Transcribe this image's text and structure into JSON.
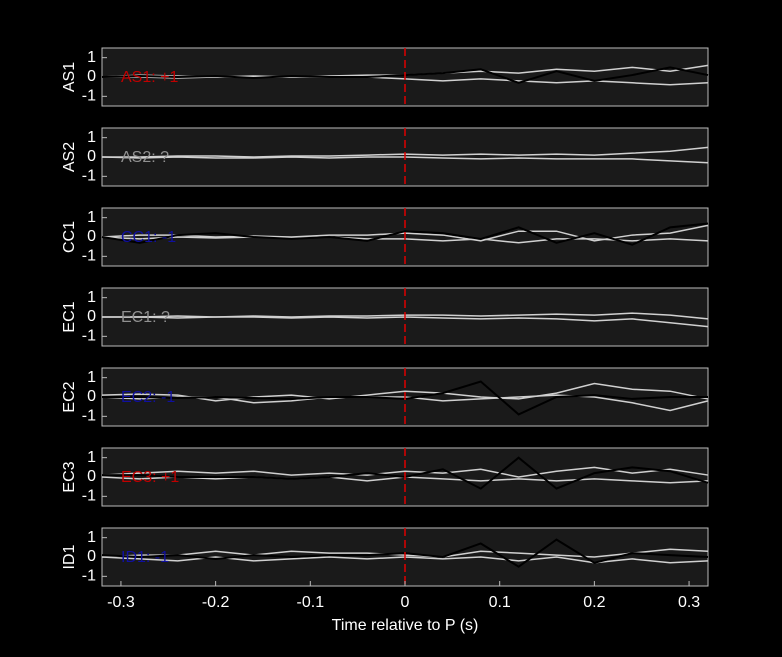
{
  "chart_data": [
    {
      "type": "line",
      "ylabel": "AS1",
      "annotation": "AS1: +1",
      "annotation_color": "#c00000",
      "vline": 0,
      "vline_color": "#e00000",
      "xlim": [
        -0.32,
        0.32
      ],
      "ylim": [
        -1.5,
        1.5
      ],
      "yticks": [
        1,
        0,
        -1
      ],
      "x": [
        -0.32,
        -0.28,
        -0.24,
        -0.2,
        -0.16,
        -0.12,
        -0.08,
        -0.04,
        0,
        0.04,
        0.08,
        0.12,
        0.16,
        0.2,
        0.24,
        0.28,
        0.32
      ],
      "series": [
        {
          "color": "#d0d0d0",
          "values": [
            0,
            0.1,
            0.05,
            0,
            0,
            0,
            0.05,
            0.1,
            0.1,
            0.2,
            0.3,
            0.2,
            0.4,
            0.3,
            0.5,
            0.3,
            0.6
          ]
        },
        {
          "color": "#d0d0d0",
          "values": [
            0,
            0,
            -0.05,
            0,
            0.05,
            0,
            0,
            0,
            -0.1,
            -0.2,
            -0.1,
            -0.2,
            -0.3,
            -0.2,
            -0.3,
            -0.4,
            -0.3
          ]
        },
        {
          "color": "#000000",
          "values": [
            0,
            0.05,
            0,
            0.05,
            -0.05,
            0.05,
            0,
            0,
            0.1,
            0.2,
            0.4,
            -0.3,
            0.3,
            -0.2,
            0.1,
            0.5,
            0.1
          ]
        }
      ]
    },
    {
      "type": "line",
      "ylabel": "AS2",
      "annotation": "AS2: ?",
      "annotation_color": "#909090",
      "vline": 0,
      "vline_color": "#e00000",
      "xlim": [
        -0.32,
        0.32
      ],
      "ylim": [
        -1.5,
        1.5
      ],
      "yticks": [
        1,
        0,
        -1
      ],
      "x": [
        -0.32,
        -0.28,
        -0.24,
        -0.2,
        -0.16,
        -0.12,
        -0.08,
        -0.04,
        0,
        0.04,
        0.08,
        0.12,
        0.16,
        0.2,
        0.24,
        0.28,
        0.32
      ],
      "series": [
        {
          "color": "#d0d0d0",
          "values": [
            0,
            0,
            0.05,
            0.05,
            0,
            0.05,
            0.05,
            0.1,
            0.15,
            0.1,
            0.15,
            0.1,
            0.15,
            0.1,
            0.2,
            0.3,
            0.5
          ]
        },
        {
          "color": "#d0d0d0",
          "values": [
            0,
            -0.05,
            0,
            -0.05,
            -0.05,
            0,
            -0.05,
            0,
            0,
            -0.05,
            -0.1,
            -0.05,
            -0.1,
            -0.1,
            -0.1,
            -0.2,
            -0.3
          ]
        }
      ]
    },
    {
      "type": "line",
      "ylabel": "CC1",
      "annotation": "CC1: -1",
      "annotation_color": "#1010a0",
      "vline": 0,
      "vline_color": "#e00000",
      "xlim": [
        -0.32,
        0.32
      ],
      "ylim": [
        -1.5,
        1.5
      ],
      "yticks": [
        1,
        0,
        -1
      ],
      "x": [
        -0.32,
        -0.28,
        -0.24,
        -0.2,
        -0.16,
        -0.12,
        -0.08,
        -0.04,
        0,
        0.04,
        0.08,
        0.12,
        0.16,
        0.2,
        0.24,
        0.28,
        0.32
      ],
      "series": [
        {
          "color": "#d0d0d0",
          "values": [
            0,
            0.1,
            0.1,
            0,
            0.05,
            0,
            0.1,
            0.1,
            0.2,
            0.1,
            -0.2,
            0.3,
            0.3,
            -0.2,
            0.1,
            0.2,
            0.6
          ]
        },
        {
          "color": "#d0d0d0",
          "values": [
            0,
            -0.1,
            0,
            -0.05,
            0,
            -0.05,
            0,
            -0.1,
            -0.1,
            -0.2,
            -0.1,
            -0.3,
            -0.1,
            -0.1,
            -0.2,
            -0.1,
            -0.2
          ]
        },
        {
          "color": "#000000",
          "values": [
            0,
            -0.3,
            0.1,
            0.2,
            0,
            -0.1,
            0,
            -0.2,
            0.3,
            0.2,
            -0.1,
            0.5,
            -0.3,
            0.2,
            -0.4,
            0.5,
            0.7
          ]
        }
      ]
    },
    {
      "type": "line",
      "ylabel": "EC1",
      "annotation": "EC1: ?",
      "annotation_color": "#909090",
      "vline": 0,
      "vline_color": "#e00000",
      "xlim": [
        -0.32,
        0.32
      ],
      "ylim": [
        -1.5,
        1.5
      ],
      "yticks": [
        1,
        0,
        -1
      ],
      "x": [
        -0.32,
        -0.28,
        -0.24,
        -0.2,
        -0.16,
        -0.12,
        -0.08,
        -0.04,
        0,
        0.04,
        0.08,
        0.12,
        0.16,
        0.2,
        0.24,
        0.28,
        0.32
      ],
      "series": [
        {
          "color": "#d0d0d0",
          "values": [
            0,
            0,
            0.05,
            0,
            0.05,
            0,
            0.05,
            0.05,
            0.1,
            0.1,
            0.05,
            0.1,
            0.15,
            0.1,
            0.2,
            0.1,
            -0.1
          ]
        },
        {
          "color": "#d0d0d0",
          "values": [
            0,
            0,
            -0.05,
            0,
            0,
            -0.05,
            0,
            -0.05,
            0,
            -0.05,
            -0.1,
            -0.05,
            -0.1,
            -0.2,
            -0.1,
            -0.3,
            -0.5
          ]
        }
      ]
    },
    {
      "type": "line",
      "ylabel": "EC2",
      "annotation": "EC2: -1",
      "annotation_color": "#1010a0",
      "vline": 0,
      "vline_color": "#e00000",
      "xlim": [
        -0.32,
        0.32
      ],
      "ylim": [
        -1.5,
        1.5
      ],
      "yticks": [
        1,
        0,
        -1
      ],
      "x": [
        -0.32,
        -0.28,
        -0.24,
        -0.2,
        -0.16,
        -0.12,
        -0.08,
        -0.04,
        0,
        0.04,
        0.08,
        0.12,
        0.16,
        0.2,
        0.24,
        0.28,
        0.32
      ],
      "series": [
        {
          "color": "#d0d0d0",
          "values": [
            0.1,
            0.15,
            0.1,
            -0.2,
            0,
            0.1,
            -0.1,
            0.1,
            0.3,
            0.2,
            0,
            -0.1,
            0.2,
            0.7,
            0.4,
            0.3,
            -0.1
          ]
        },
        {
          "color": "#d0d0d0",
          "values": [
            0,
            -0.1,
            0,
            0,
            -0.3,
            -0.2,
            0,
            0,
            0,
            -0.2,
            -0.1,
            0,
            0.1,
            0,
            -0.3,
            -0.7,
            -0.2
          ]
        },
        {
          "color": "#000000",
          "values": [
            0,
            0,
            -0.05,
            0,
            -0.05,
            -0.1,
            0,
            0,
            -0.1,
            0.2,
            0.8,
            -0.9,
            0,
            0.1,
            -0.1,
            0,
            0
          ]
        }
      ]
    },
    {
      "type": "line",
      "ylabel": "EC3",
      "annotation": "EC3: +1",
      "annotation_color": "#c00000",
      "vline": 0,
      "vline_color": "#e00000",
      "xlim": [
        -0.32,
        0.32
      ],
      "ylim": [
        -1.5,
        1.5
      ],
      "yticks": [
        1,
        0,
        -1
      ],
      "x": [
        -0.32,
        -0.28,
        -0.24,
        -0.2,
        -0.16,
        -0.12,
        -0.08,
        -0.04,
        0,
        0.04,
        0.08,
        0.12,
        0.16,
        0.2,
        0.24,
        0.28,
        0.32
      ],
      "series": [
        {
          "color": "#d0d0d0",
          "values": [
            0.1,
            0.2,
            0.3,
            0.2,
            0.3,
            0.1,
            0.2,
            0.1,
            0.3,
            0.2,
            0.4,
            0,
            0.3,
            0.5,
            0.2,
            0.4,
            0.1
          ]
        },
        {
          "color": "#d0d0d0",
          "values": [
            0,
            -0.1,
            0,
            -0.1,
            0,
            -0.1,
            0,
            -0.2,
            0,
            -0.1,
            -0.2,
            -0.1,
            -0.2,
            -0.1,
            -0.2,
            -0.3,
            -0.2
          ]
        },
        {
          "color": "#000000",
          "values": [
            0.1,
            0.1,
            0,
            0,
            0,
            -0.1,
            0,
            0.2,
            0,
            0.4,
            -0.6,
            1.0,
            -0.6,
            0.2,
            0.5,
            0.3,
            -0.3
          ]
        }
      ]
    },
    {
      "type": "line",
      "ylabel": "ID1",
      "annotation": "ID1: -1",
      "annotation_color": "#1010a0",
      "vline": 0,
      "vline_color": "#e00000",
      "xlim": [
        -0.32,
        0.32
      ],
      "ylim": [
        -1.5,
        1.5
      ],
      "yticks": [
        1,
        0,
        -1
      ],
      "xticks": [
        -0.3,
        -0.2,
        -0.1,
        0,
        0.1,
        0.2,
        0.3
      ],
      "xlabel": "Time relative to P (s)",
      "x": [
        -0.32,
        -0.28,
        -0.24,
        -0.2,
        -0.16,
        -0.12,
        -0.08,
        -0.04,
        0,
        0.04,
        0.08,
        0.12,
        0.16,
        0.2,
        0.24,
        0.28,
        0.32
      ],
      "series": [
        {
          "color": "#d0d0d0",
          "values": [
            0,
            0.1,
            0.1,
            0.3,
            0.1,
            0.3,
            0.2,
            0.2,
            0.1,
            0,
            0.3,
            0.2,
            0.1,
            0,
            0.2,
            0.4,
            0.3
          ]
        },
        {
          "color": "#d0d0d0",
          "values": [
            0,
            -0.1,
            -0.2,
            0,
            -0.2,
            -0.1,
            0,
            -0.1,
            0,
            -0.1,
            0,
            -0.2,
            0,
            -0.3,
            -0.1,
            -0.3,
            -0.2
          ]
        },
        {
          "color": "#000000",
          "values": [
            0.1,
            0,
            0.1,
            -0.1,
            0.1,
            0,
            0.1,
            0.1,
            0.2,
            0,
            0.7,
            -0.5,
            0.9,
            -0.3,
            0.2,
            0.1,
            0
          ]
        }
      ]
    }
  ]
}
